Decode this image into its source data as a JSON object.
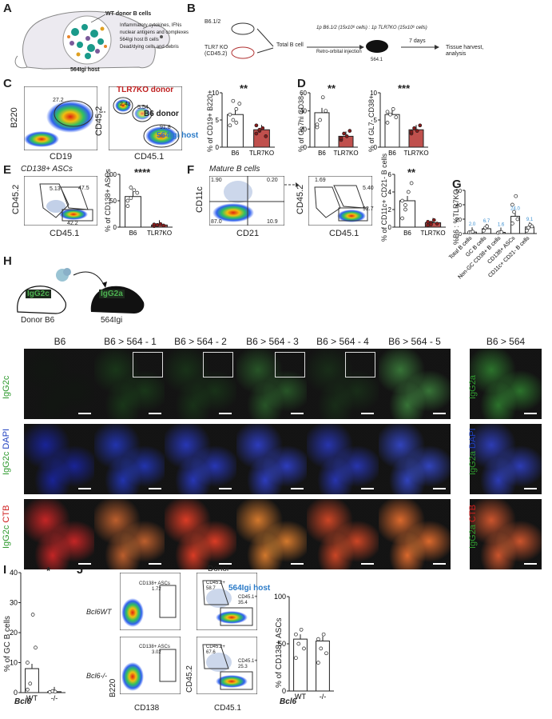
{
  "panels": {
    "A": "A",
    "B": "B",
    "C": "C",
    "D": "D",
    "E": "E",
    "F": "F",
    "G": "G",
    "H": "H",
    "I": "I",
    "J": "J"
  },
  "panelA": {
    "wt_donor": "WT donor B cells",
    "legend": [
      "Inflammatory cytokines, IFNs",
      "nuclear antigens and complexes",
      "564Igi host B cells",
      "Dead/dying cells and debris"
    ],
    "host": "564Igi host",
    "colors": {
      "inflammatory": "#e8842a",
      "nuclear": "#e0a020",
      "host_b": "#1a9a8a",
      "dead": "#7a5a9a"
    }
  },
  "panelB": {
    "b6": "B6.1/2",
    "tlr7ko": "TLR7 KO",
    "tlr7ko_sub": "(CD45.2)",
    "total": "Total B cell",
    "inj": "Retro-orbital injection",
    "ratio": "1p B6.1/2 (15x10⁶ cells) : 1p TLR7KO (15x10⁶ cells)",
    "days": "7 days",
    "tissue": "Tissue harvest,",
    "analysis": "analysis",
    "mouse": "564.1"
  },
  "panelC": {
    "y1": "B220",
    "x1": "CD19",
    "g1": "27.2",
    "y2": "CD45.2",
    "x2": "CD45.1",
    "donor_tlr": "TLR7KO donor",
    "donor_b6": "B6 donor",
    "host": "564Igi host",
    "g_a": "2.43",
    "g_b": "5.54",
    "g_c": "91.8",
    "sig": "**",
    "ylabel": "% of CD19+ B220+",
    "cats": [
      "B6",
      "TLR7KO"
    ]
  },
  "panelD": {
    "sig1": "**",
    "y1": "% of GL7hi CD38-",
    "sig2": "***",
    "y2": "% of GL7- CD38+",
    "cats": [
      "B6",
      "TLR7KO"
    ]
  },
  "panelE": {
    "title": "CD138+ ASCs",
    "y": "CD45.2",
    "x": "CD45.1",
    "g1": "5.13",
    "g2": "47.5",
    "g3": "42.2",
    "sig": "****",
    "ylabel": "% of CD138+ ASCs",
    "cats": [
      "B6",
      "TLR7KO"
    ]
  },
  "panelF": {
    "title": "Mature B cells",
    "y": "CD11c",
    "x": "CD21",
    "q1": "1.90",
    "q2": "0.20",
    "q3": "87.0",
    "q4": "10.9",
    "y2": "CD45.2",
    "x2": "CD45.1",
    "g1": "1.69",
    "g2": "5.40",
    "g3": "92.7",
    "sig": "**",
    "ylabel": "% of CD11c+ CD21- B cells",
    "cats": [
      "B6",
      "TLR7KO"
    ]
  },
  "panelG": {
    "ylabel": "%B6 : %TLR7KO",
    "cats": [
      "Total B cells",
      "GC B cells",
      "Non-GC CD38+ B cells",
      "CD138+ ASCs",
      "CD11c+ CD21- B cells"
    ],
    "labels": [
      "2.0",
      "6.7",
      "1.6",
      "24.0",
      "9.1"
    ]
  },
  "panelH": {
    "donor": "Donor B6",
    "host": "564Igi",
    "igg2c": "IgG2c",
    "igg2a": "IgG2a",
    "cols": [
      "B6",
      "B6 > 564 - 1",
      "B6 > 564 - 2",
      "B6 > 564 - 3",
      "B6 > 564 - 4",
      "B6 > 564 - 5",
      "B6 > 564"
    ],
    "row1": "IgG2c",
    "row2a": "IgG2c",
    "row2b": "DAPI",
    "row3a": "IgG2c",
    "row3b": "CTB",
    "row1r": "IgG2a",
    "row2ra": "IgG2a",
    "row2rb": "DAPI",
    "row3ra": "IgG2a",
    "row3rb": "CTB"
  },
  "panelI": {
    "sig": "*",
    "ylabel": "% of GC B cells",
    "xlab": "Bcl6",
    "cats": [
      "WT",
      "-/-"
    ]
  },
  "panelJ": {
    "bcl6wt": "Bcl6WT",
    "bcl6ko": "Bcl6-/-",
    "y1": "B220",
    "x1": "CD138",
    "y2": "CD45.2",
    "x2": "CD45.1",
    "donor": "Donor",
    "host": "564Igi host",
    "asc_wt": "CD138+ ASCs",
    "asc_wt_v": "1.72",
    "asc_ko": "CD138+ ASCs",
    "asc_ko_v": "3.02",
    "d_wt": "CD45.2+",
    "d_wt_v": "58.7",
    "h_wt": "CD45.1+",
    "h_wt_v": "35.4",
    "d_ko": "CD45.2+",
    "d_ko_v": "67.6",
    "h_ko": "CD45.1+",
    "h_ko_v": "25.3",
    "ylabel": "% of CD138+ ASCs",
    "xlab": "Bcl6",
    "cats": [
      "WT",
      "-/-"
    ]
  },
  "chart_data": [
    {
      "type": "bar",
      "panel": "C",
      "categories": [
        "B6",
        "TLR7KO"
      ],
      "values": [
        6.0,
        3.2
      ],
      "ylim": [
        0,
        10
      ],
      "yticks": [
        "0",
        "5",
        "10"
      ]
    },
    {
      "type": "bar",
      "panel": "D-left",
      "categories": [
        "B6",
        "TLR7KO"
      ],
      "values": [
        38,
        12
      ],
      "ylim": [
        0,
        60
      ],
      "yticks": [
        "0",
        "20",
        "40",
        "60"
      ]
    },
    {
      "type": "bar",
      "panel": "D-right",
      "categories": [
        "B6",
        "TLR7KO"
      ],
      "values": [
        6.0,
        3.2
      ],
      "ylim": [
        0,
        10
      ],
      "yticks": [
        "0",
        "5",
        "10"
      ]
    },
    {
      "type": "bar",
      "panel": "E",
      "categories": [
        "B6",
        "TLR7KO"
      ],
      "values": [
        58,
        4
      ],
      "ylim": [
        0,
        100
      ],
      "yticks": [
        "0",
        "50",
        "100"
      ]
    },
    {
      "type": "bar",
      "panel": "F",
      "categories": [
        "B6",
        "TLR7KO"
      ],
      "values": [
        3.0,
        0.5
      ],
      "ylim": [
        0,
        6
      ],
      "yticks": [
        "0",
        "2",
        "4",
        "6"
      ]
    },
    {
      "type": "bar",
      "panel": "G",
      "categories": [
        "Total B cells",
        "GC B cells",
        "Non-GC CD38+ B cells",
        "CD138+ ASCs",
        "CD11c+ CD21- B cells"
      ],
      "values": [
        2.0,
        6.7,
        1.6,
        24.0,
        9.1
      ],
      "ylim": [
        0,
        60
      ],
      "yticks": [
        "0",
        "20",
        "40",
        "60"
      ]
    },
    {
      "type": "bar",
      "panel": "I",
      "categories": [
        "WT",
        "-/-"
      ],
      "values": [
        8,
        0.3
      ],
      "ylim": [
        0,
        40
      ],
      "yticks": [
        "0",
        "10",
        "20",
        "30",
        "40"
      ]
    },
    {
      "type": "bar",
      "panel": "J",
      "categories": [
        "WT",
        "-/-"
      ],
      "values": [
        55,
        53
      ],
      "ylim": [
        0,
        100
      ],
      "yticks": [
        "0",
        "50",
        "100"
      ]
    }
  ]
}
